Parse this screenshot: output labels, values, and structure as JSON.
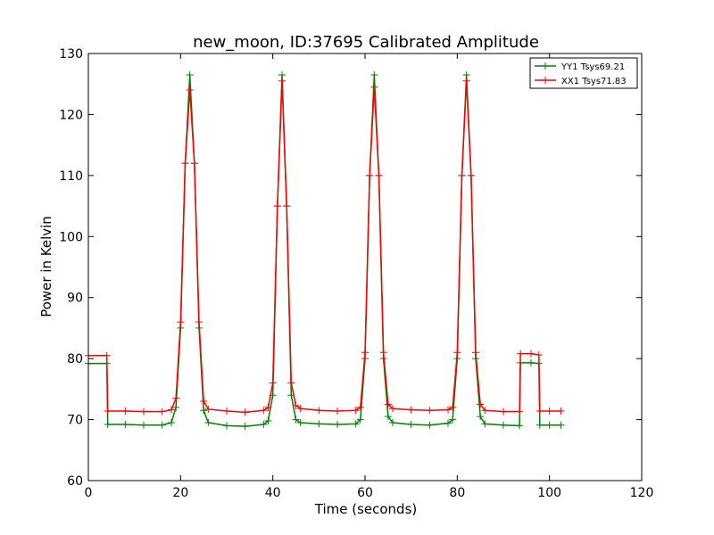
{
  "chart_data": {
    "type": "line",
    "title": "new_moon, ID:37695 Calibrated Amplitude",
    "xlabel": "Time (seconds)",
    "ylabel": "Power in Kelvin",
    "xlim": [
      0,
      120
    ],
    "ylim": [
      60,
      130
    ],
    "xticks": [
      0,
      20,
      40,
      60,
      80,
      100,
      120
    ],
    "yticks": [
      60,
      70,
      80,
      90,
      100,
      110,
      120,
      130
    ],
    "grid": false,
    "legend_position": "top-right",
    "marker": "+",
    "series": [
      {
        "name": "YY1 Tsys69.21",
        "color": "#008000",
        "x": [
          0,
          4,
          4.2,
          8,
          12,
          16,
          18,
          19,
          20,
          21,
          22,
          23,
          24,
          25,
          26,
          30,
          34,
          38,
          39,
          40,
          41,
          42,
          43,
          44,
          45,
          46,
          50,
          54,
          58,
          59,
          60,
          61,
          62,
          63,
          64,
          65,
          66,
          70,
          74,
          78,
          79,
          80,
          81,
          82,
          83,
          84,
          85,
          86,
          90,
          93.5,
          93.7,
          96,
          97.7,
          97.9,
          100,
          102.5
        ],
        "y": [
          79.2,
          79.2,
          69.2,
          69.2,
          69.1,
          69.1,
          69.5,
          72,
          85,
          112,
          126.5,
          112,
          85,
          71.5,
          69.5,
          69,
          68.9,
          69.2,
          69.8,
          74,
          105,
          126.5,
          105,
          74,
          70,
          69.5,
          69.3,
          69.2,
          69.3,
          70,
          80,
          110,
          126.5,
          110,
          80,
          70.5,
          69.5,
          69.2,
          69.1,
          69.4,
          70,
          80,
          110,
          126.5,
          110,
          80,
          70.5,
          69.3,
          69.1,
          69,
          79.3,
          79.3,
          79.2,
          69.1,
          69.1,
          69.1
        ]
      },
      {
        "name": "XX1 Tsys71.83",
        "color": "#ff0000",
        "x": [
          0,
          4,
          4.2,
          8,
          12,
          16,
          18,
          19,
          20,
          21,
          22,
          23,
          24,
          25,
          26,
          30,
          34,
          38,
          39,
          40,
          41,
          42,
          43,
          44,
          45,
          46,
          50,
          54,
          58,
          59,
          60,
          61,
          62,
          63,
          64,
          65,
          66,
          70,
          74,
          78,
          79,
          80,
          81,
          82,
          83,
          84,
          85,
          86,
          90,
          93.5,
          93.7,
          96,
          97.7,
          97.9,
          100,
          102.5
        ],
        "y": [
          80.5,
          80.5,
          71.4,
          71.4,
          71.3,
          71.3,
          71.6,
          73.5,
          86,
          112,
          124,
          112,
          86,
          73,
          71.7,
          71.4,
          71.2,
          71.5,
          72,
          76,
          105,
          125.5,
          105,
          76,
          72.3,
          71.8,
          71.5,
          71.4,
          71.5,
          72,
          81,
          110,
          124.5,
          110,
          81,
          72.5,
          71.8,
          71.6,
          71.5,
          71.6,
          72,
          81,
          110,
          125.5,
          110,
          81,
          72.5,
          71.5,
          71.3,
          71.3,
          80.8,
          80.8,
          80.6,
          71.4,
          71.4,
          71.4
        ]
      }
    ]
  }
}
